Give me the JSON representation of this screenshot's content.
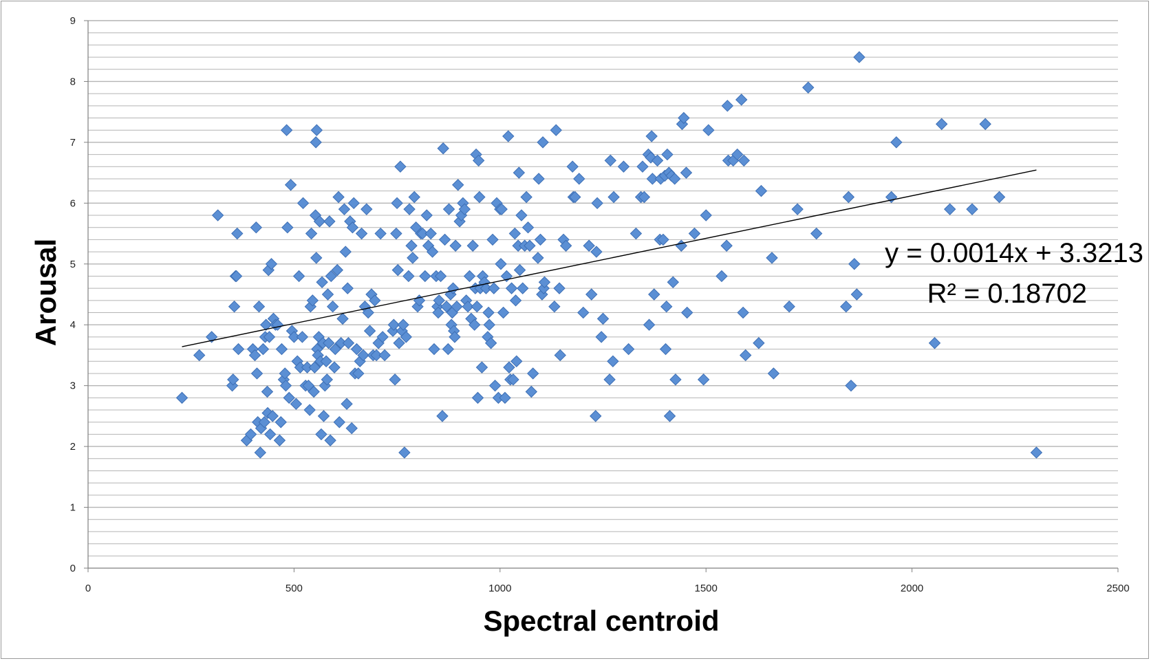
{
  "colors": {
    "marker_fill": "#5b8fd4",
    "marker_stroke": "#3d6fb5",
    "grid": "#b4b4b4",
    "axis": "#7f7f7f",
    "trendline": "#000000"
  },
  "chart_data": {
    "type": "scatter",
    "title": "",
    "xlabel": "Spectral centroid",
    "ylabel": "Arousal",
    "xlim": [
      0,
      2500
    ],
    "ylim": [
      0,
      9
    ],
    "x_ticks": [
      "0",
      "500",
      "1000",
      "1500",
      "2000",
      "2500"
    ],
    "y_ticks": [
      "0",
      "1",
      "2",
      "3",
      "4",
      "5",
      "6",
      "7",
      "8",
      "9"
    ],
    "grid": "horizontal minor gridlines every 0.2",
    "marker": "diamond",
    "trendline": {
      "type": "linear",
      "slope": 0.0014,
      "intercept": 3.3213,
      "x_range": [
        228,
        2302
      ]
    },
    "equation": "y = 0.0014x + 3.3213",
    "r_squared": "R² = 0.18702",
    "points": [
      [
        228,
        2.8
      ],
      [
        270,
        3.5
      ],
      [
        300,
        3.8
      ],
      [
        315,
        5.8
      ],
      [
        350,
        3.0
      ],
      [
        352,
        3.1
      ],
      [
        355,
        4.3
      ],
      [
        358,
        4.8
      ],
      [
        360,
        4.8
      ],
      [
        362,
        5.5
      ],
      [
        365,
        3.6
      ],
      [
        385,
        2.1
      ],
      [
        395,
        2.2
      ],
      [
        400,
        3.6
      ],
      [
        405,
        3.5
      ],
      [
        408,
        5.6
      ],
      [
        410,
        3.2
      ],
      [
        412,
        2.4
      ],
      [
        415,
        4.3
      ],
      [
        418,
        1.9
      ],
      [
        420,
        2.3
      ],
      [
        425,
        3.6
      ],
      [
        428,
        2.4
      ],
      [
        430,
        3.8
      ],
      [
        432,
        4.0
      ],
      [
        435,
        2.9
      ],
      [
        436,
        2.55
      ],
      [
        438,
        4.9
      ],
      [
        440,
        3.8
      ],
      [
        442,
        2.2
      ],
      [
        445,
        5.0
      ],
      [
        448,
        2.5
      ],
      [
        450,
        4.1
      ],
      [
        455,
        4.0
      ],
      [
        460,
        4.0
      ],
      [
        465,
        2.1
      ],
      [
        468,
        2.4
      ],
      [
        470,
        3.6
      ],
      [
        475,
        3.1
      ],
      [
        478,
        3.2
      ],
      [
        480,
        3.0
      ],
      [
        482,
        7.2
      ],
      [
        484,
        5.6
      ],
      [
        488,
        2.8
      ],
      [
        492,
        6.3
      ],
      [
        495,
        3.9
      ],
      [
        500,
        3.8
      ],
      [
        505,
        2.7
      ],
      [
        508,
        3.4
      ],
      [
        512,
        4.8
      ],
      [
        515,
        3.3
      ],
      [
        520,
        3.8
      ],
      [
        522,
        6.0
      ],
      [
        528,
        3.0
      ],
      [
        532,
        3.3
      ],
      [
        535,
        3.0
      ],
      [
        538,
        2.6
      ],
      [
        540,
        4.3
      ],
      [
        542,
        5.5
      ],
      [
        545,
        4.4
      ],
      [
        548,
        2.9
      ],
      [
        550,
        3.3
      ],
      [
        552,
        5.8
      ],
      [
        553,
        7.0
      ],
      [
        554,
        5.1
      ],
      [
        555,
        7.2
      ],
      [
        556,
        3.6
      ],
      [
        558,
        3.5
      ],
      [
        560,
        3.8
      ],
      [
        562,
        5.7
      ],
      [
        564,
        3.4
      ],
      [
        566,
        2.2
      ],
      [
        568,
        4.7
      ],
      [
        570,
        3.7
      ],
      [
        572,
        2.5
      ],
      [
        575,
        3.0
      ],
      [
        578,
        3.4
      ],
      [
        580,
        3.1
      ],
      [
        582,
        4.5
      ],
      [
        584,
        3.7
      ],
      [
        586,
        5.7
      ],
      [
        588,
        2.1
      ],
      [
        590,
        4.8
      ],
      [
        594,
        4.3
      ],
      [
        598,
        3.3
      ],
      [
        600,
        3.6
      ],
      [
        605,
        4.9
      ],
      [
        608,
        6.1
      ],
      [
        610,
        2.4
      ],
      [
        614,
        3.7
      ],
      [
        618,
        4.1
      ],
      [
        622,
        5.9
      ],
      [
        625,
        5.2
      ],
      [
        628,
        2.7
      ],
      [
        630,
        4.6
      ],
      [
        632,
        3.7
      ],
      [
        636,
        5.7
      ],
      [
        640,
        2.3
      ],
      [
        642,
        5.6
      ],
      [
        645,
        6.0
      ],
      [
        648,
        3.2
      ],
      [
        652,
        3.6
      ],
      [
        656,
        3.2
      ],
      [
        660,
        3.4
      ],
      [
        664,
        5.5
      ],
      [
        668,
        3.5
      ],
      [
        672,
        4.3
      ],
      [
        676,
        5.9
      ],
      [
        680,
        4.2
      ],
      [
        684,
        3.9
      ],
      [
        688,
        4.5
      ],
      [
        692,
        3.5
      ],
      [
        696,
        4.4
      ],
      [
        700,
        3.5
      ],
      [
        705,
        3.7
      ],
      [
        710,
        5.5
      ],
      [
        715,
        3.8
      ],
      [
        720,
        3.5
      ],
      [
        740,
        3.9
      ],
      [
        742,
        4.0
      ],
      [
        745,
        3.1
      ],
      [
        748,
        5.5
      ],
      [
        750,
        6.0
      ],
      [
        752,
        4.9
      ],
      [
        755,
        3.7
      ],
      [
        758,
        6.6
      ],
      [
        762,
        3.9
      ],
      [
        765,
        4.0
      ],
      [
        768,
        1.9
      ],
      [
        772,
        3.8
      ],
      [
        778,
        4.8
      ],
      [
        780,
        5.9
      ],
      [
        785,
        5.3
      ],
      [
        788,
        5.1
      ],
      [
        792,
        6.1
      ],
      [
        796,
        5.6
      ],
      [
        800,
        4.3
      ],
      [
        804,
        4.4
      ],
      [
        808,
        5.5
      ],
      [
        812,
        5.5
      ],
      [
        818,
        4.8
      ],
      [
        822,
        5.8
      ],
      [
        826,
        5.3
      ],
      [
        832,
        5.5
      ],
      [
        836,
        5.2
      ],
      [
        840,
        3.6
      ],
      [
        845,
        4.8
      ],
      [
        848,
        4.3
      ],
      [
        850,
        4.2
      ],
      [
        852,
        4.4
      ],
      [
        856,
        4.8
      ],
      [
        860,
        2.5
      ],
      [
        862,
        6.9
      ],
      [
        866,
        5.4
      ],
      [
        870,
        4.3
      ],
      [
        874,
        3.6
      ],
      [
        876,
        5.9
      ],
      [
        880,
        4.5
      ],
      [
        882,
        4.0
      ],
      [
        884,
        4.2
      ],
      [
        886,
        4.6
      ],
      [
        888,
        3.9
      ],
      [
        890,
        3.8
      ],
      [
        892,
        5.3
      ],
      [
        895,
        4.3
      ],
      [
        898,
        6.3
      ],
      [
        902,
        5.7
      ],
      [
        906,
        5.8
      ],
      [
        910,
        6.0
      ],
      [
        914,
        5.9
      ],
      [
        918,
        4.4
      ],
      [
        922,
        4.3
      ],
      [
        926,
        4.8
      ],
      [
        930,
        4.1
      ],
      [
        934,
        5.3
      ],
      [
        938,
        4.0
      ],
      [
        940,
        4.6
      ],
      [
        942,
        6.8
      ],
      [
        944,
        4.3
      ],
      [
        946,
        2.8
      ],
      [
        948,
        6.7
      ],
      [
        950,
        6.1
      ],
      [
        952,
        4.6
      ],
      [
        956,
        3.3
      ],
      [
        958,
        4.8
      ],
      [
        962,
        4.7
      ],
      [
        966,
        4.6
      ],
      [
        970,
        3.8
      ],
      [
        972,
        4.2
      ],
      [
        974,
        4.0
      ],
      [
        978,
        3.7
      ],
      [
        982,
        5.4
      ],
      [
        985,
        4.6
      ],
      [
        988,
        3.0
      ],
      [
        992,
        6.0
      ],
      [
        996,
        2.8
      ],
      [
        1000,
        5.9
      ],
      [
        1002,
        5.0
      ],
      [
        1004,
        5.9
      ],
      [
        1008,
        4.2
      ],
      [
        1012,
        2.8
      ],
      [
        1016,
        4.8
      ],
      [
        1020,
        7.1
      ],
      [
        1022,
        3.3
      ],
      [
        1025,
        3.1
      ],
      [
        1028,
        4.6
      ],
      [
        1032,
        3.1
      ],
      [
        1036,
        5.5
      ],
      [
        1038,
        4.4
      ],
      [
        1040,
        3.4
      ],
      [
        1044,
        5.3
      ],
      [
        1046,
        6.5
      ],
      [
        1048,
        4.9
      ],
      [
        1052,
        5.8
      ],
      [
        1055,
        4.6
      ],
      [
        1060,
        5.3
      ],
      [
        1064,
        6.1
      ],
      [
        1068,
        5.6
      ],
      [
        1072,
        5.3
      ],
      [
        1076,
        2.9
      ],
      [
        1080,
        3.2
      ],
      [
        1092,
        5.1
      ],
      [
        1094,
        6.4
      ],
      [
        1098,
        5.4
      ],
      [
        1102,
        4.5
      ],
      [
        1104,
        7.0
      ],
      [
        1106,
        4.6
      ],
      [
        1108,
        4.7
      ],
      [
        1132,
        4.3
      ],
      [
        1136,
        7.2
      ],
      [
        1144,
        4.6
      ],
      [
        1146,
        3.5
      ],
      [
        1154,
        5.4
      ],
      [
        1160,
        5.3
      ],
      [
        1176,
        6.6
      ],
      [
        1178,
        6.1
      ],
      [
        1182,
        6.1
      ],
      [
        1192,
        6.4
      ],
      [
        1202,
        4.2
      ],
      [
        1216,
        5.3
      ],
      [
        1222,
        4.5
      ],
      [
        1232,
        2.5
      ],
      [
        1234,
        5.2
      ],
      [
        1236,
        6.0
      ],
      [
        1246,
        3.8
      ],
      [
        1250,
        4.1
      ],
      [
        1266,
        3.1
      ],
      [
        1268,
        6.7
      ],
      [
        1274,
        3.4
      ],
      [
        1276,
        6.1
      ],
      [
        1300,
        6.6
      ],
      [
        1312,
        3.6
      ],
      [
        1330,
        5.5
      ],
      [
        1342,
        6.1
      ],
      [
        1346,
        6.6
      ],
      [
        1350,
        6.1
      ],
      [
        1360,
        6.8
      ],
      [
        1362,
        4.0
      ],
      [
        1366,
        6.75
      ],
      [
        1368,
        7.1
      ],
      [
        1370,
        6.4
      ],
      [
        1374,
        4.5
      ],
      [
        1382,
        6.7
      ],
      [
        1388,
        5.4
      ],
      [
        1390,
        6.4
      ],
      [
        1396,
        5.4
      ],
      [
        1400,
        6.45
      ],
      [
        1402,
        3.6
      ],
      [
        1404,
        4.3
      ],
      [
        1406,
        6.8
      ],
      [
        1410,
        6.5
      ],
      [
        1412,
        2.5
      ],
      [
        1416,
        6.45
      ],
      [
        1420,
        4.7
      ],
      [
        1424,
        6.4
      ],
      [
        1426,
        3.1
      ],
      [
        1440,
        5.3
      ],
      [
        1442,
        7.3
      ],
      [
        1446,
        7.4
      ],
      [
        1452,
        6.5
      ],
      [
        1454,
        4.2
      ],
      [
        1472,
        5.5
      ],
      [
        1494,
        3.1
      ],
      [
        1500,
        5.8
      ],
      [
        1506,
        7.2
      ],
      [
        1538,
        4.8
      ],
      [
        1550,
        5.3
      ],
      [
        1552,
        7.6
      ],
      [
        1554,
        6.7
      ],
      [
        1566,
        6.7
      ],
      [
        1576,
        6.8
      ],
      [
        1586,
        7.7
      ],
      [
        1590,
        4.2
      ],
      [
        1592,
        6.7
      ],
      [
        1596,
        3.5
      ],
      [
        1628,
        3.7
      ],
      [
        1634,
        6.2
      ],
      [
        1660,
        5.1
      ],
      [
        1664,
        3.2
      ],
      [
        1702,
        4.3
      ],
      [
        1722,
        5.9
      ],
      [
        1748,
        7.9
      ],
      [
        1768,
        5.5
      ],
      [
        1840,
        4.3
      ],
      [
        1846,
        6.1
      ],
      [
        1852,
        3.0
      ],
      [
        1860,
        5.0
      ],
      [
        1866,
        4.5
      ],
      [
        1872,
        8.4
      ],
      [
        1950,
        6.1
      ],
      [
        1962,
        7.0
      ],
      [
        2055,
        3.7
      ],
      [
        2072,
        7.3
      ],
      [
        2092,
        5.9
      ],
      [
        2146,
        5.9
      ],
      [
        2178,
        7.3
      ],
      [
        2212,
        6.1
      ],
      [
        2302,
        1.9
      ]
    ]
  }
}
